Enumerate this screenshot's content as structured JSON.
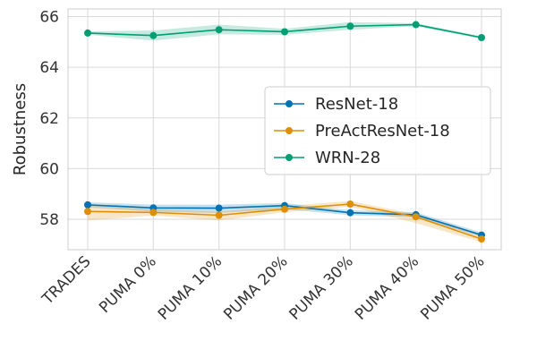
{
  "chart_data": {
    "type": "line",
    "title": "",
    "xlabel": "",
    "ylabel": "Robustness",
    "categories": [
      "TRADES",
      "PUMA 0%",
      "PUMA 10%",
      "PUMA 20%",
      "PUMA 30%",
      "PUMA 40%",
      "PUMA 50%"
    ],
    "ylim": [
      56.8,
      66.3
    ],
    "yticks": [
      58,
      60,
      62,
      64,
      66
    ],
    "grid": true,
    "legend_position": "center-right",
    "series": [
      {
        "name": "ResNet-18",
        "color": "#0173b2",
        "values": [
          58.57,
          58.45,
          58.44,
          58.54,
          58.26,
          58.18,
          57.38
        ],
        "band_low": [
          58.47,
          58.3,
          58.25,
          58.4,
          58.16,
          58.08,
          57.3
        ],
        "band_high": [
          58.67,
          58.58,
          58.58,
          58.64,
          58.36,
          58.28,
          57.48
        ]
      },
      {
        "name": "PreActResNet-18",
        "color": "#de8f05",
        "values": [
          58.31,
          58.27,
          58.16,
          58.4,
          58.6,
          58.1,
          57.22
        ],
        "band_low": [
          57.95,
          58.15,
          57.95,
          58.28,
          58.5,
          57.85,
          57.1
        ],
        "band_high": [
          58.55,
          58.4,
          58.3,
          58.52,
          58.72,
          58.2,
          57.35
        ]
      },
      {
        "name": "WRN-28",
        "color": "#029e73",
        "values": [
          65.35,
          65.25,
          65.48,
          65.4,
          65.62,
          65.68,
          65.17
        ],
        "band_low": [
          65.28,
          65.05,
          65.3,
          65.28,
          65.48,
          65.62,
          65.12
        ],
        "band_high": [
          65.42,
          65.45,
          65.68,
          65.52,
          65.78,
          65.74,
          65.22
        ]
      }
    ]
  }
}
